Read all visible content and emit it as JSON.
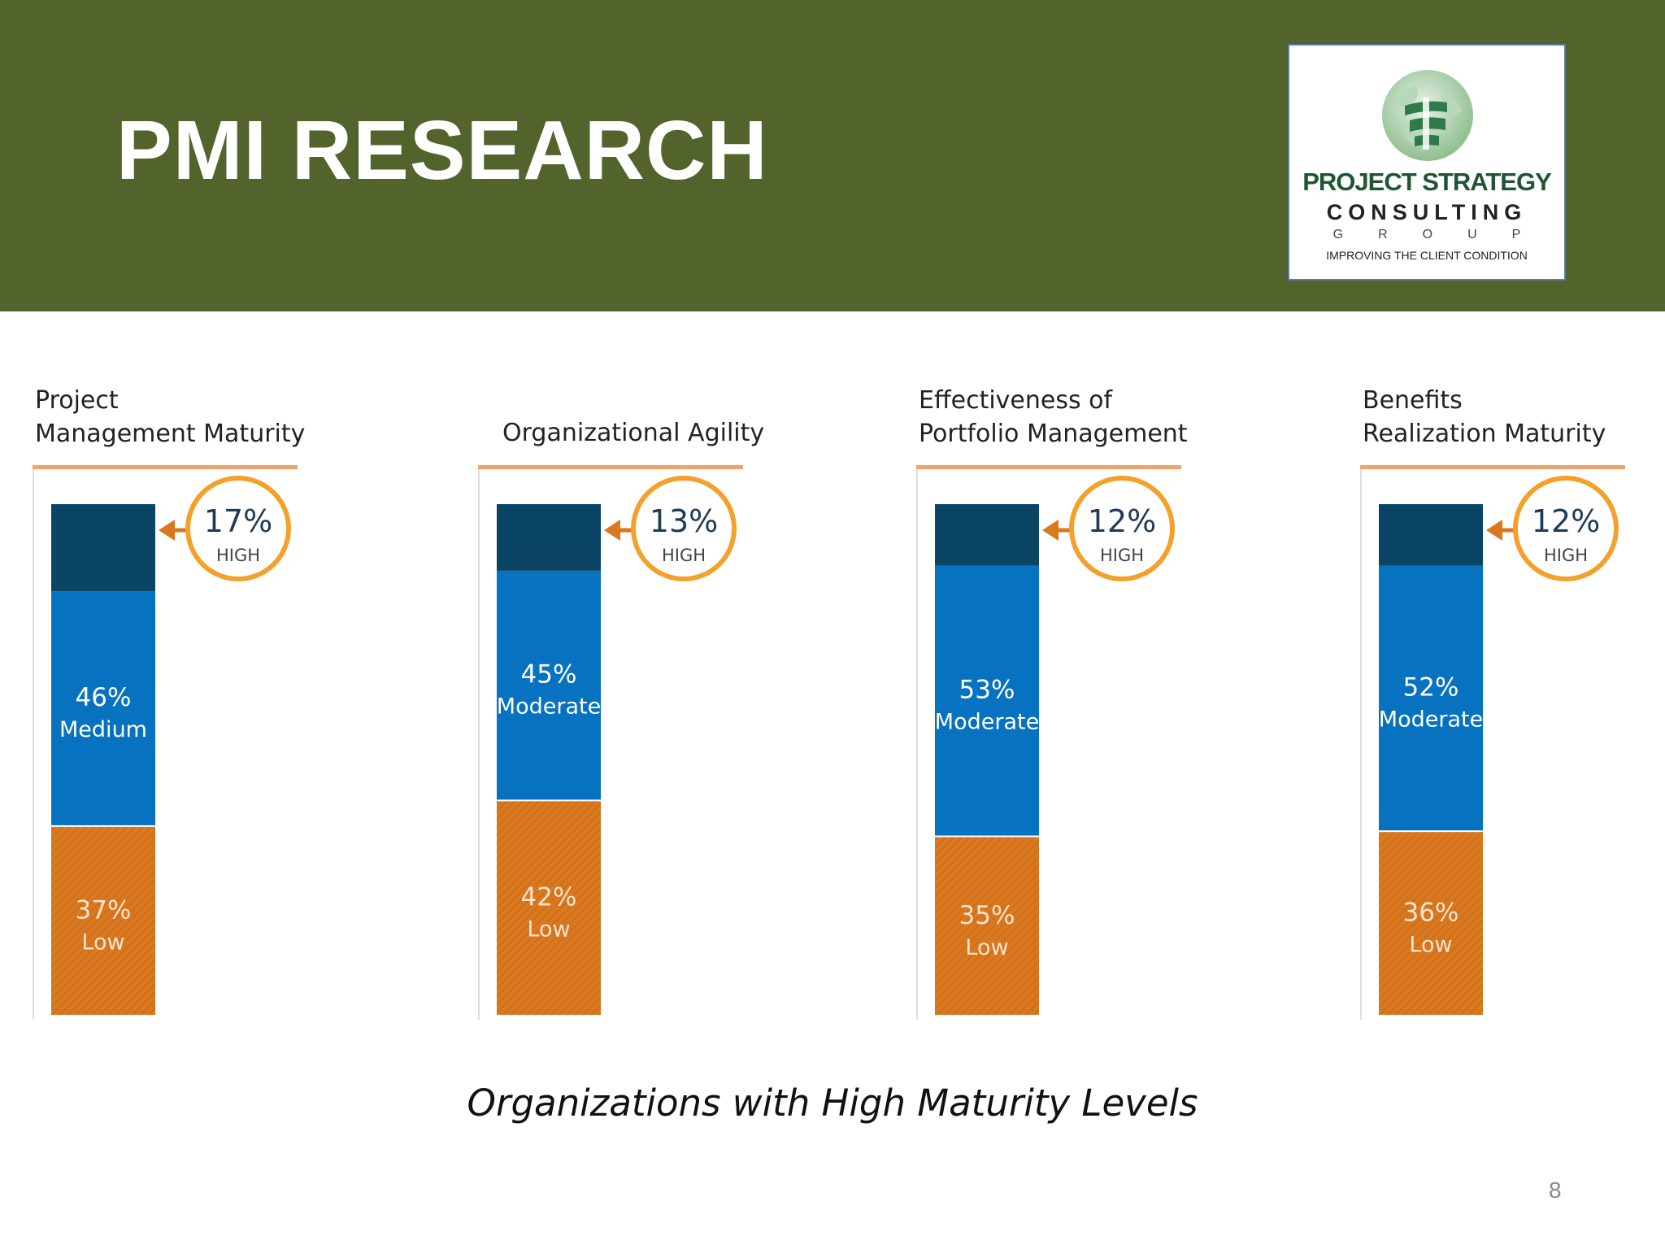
{
  "slide": {
    "title": "PMI RESEARCH",
    "caption": "Organizations with High Maturity Levels",
    "page_number": "8"
  },
  "logo": {
    "line1": "PROJECT STRATEGY",
    "line2": "CONSULTING",
    "line3": "GROUP",
    "tagline": "IMPROVING THE CLIENT CONDITION"
  },
  "colors": {
    "header": "#52632b",
    "high": "#0b4566",
    "mid": "#0672c0",
    "low": "#d9781f",
    "accent": "#f4a12c",
    "rule": "#f0a46a"
  },
  "chart_data": [
    {
      "type": "bar",
      "title": [
        "Project",
        "Management Maturity"
      ],
      "stacked": true,
      "series": [
        {
          "name": "Low",
          "label_pct": "37%",
          "label": "Low",
          "value": 37
        },
        {
          "name": "Medium",
          "label_pct": "46%",
          "label": "Medium",
          "value": 46
        },
        {
          "name": "HIGH",
          "label_pct": "17%",
          "label": "HIGH",
          "value": 17
        }
      ]
    },
    {
      "type": "bar",
      "title": [
        "Organizational Agility"
      ],
      "stacked": true,
      "series": [
        {
          "name": "Low",
          "label_pct": "42%",
          "label": "Low",
          "value": 42
        },
        {
          "name": "Moderate",
          "label_pct": "45%",
          "label": "Moderate",
          "value": 45
        },
        {
          "name": "HIGH",
          "label_pct": "13%",
          "label": "HIGH",
          "value": 13
        }
      ]
    },
    {
      "type": "bar",
      "title": [
        "Effectiveness of",
        "Portfolio Management"
      ],
      "stacked": true,
      "series": [
        {
          "name": "Low",
          "label_pct": "35%",
          "label": "Low",
          "value": 35
        },
        {
          "name": "Moderate",
          "label_pct": "53%",
          "label": "Moderate",
          "value": 53
        },
        {
          "name": "HIGH",
          "label_pct": "12%",
          "label": "HIGH",
          "value": 12
        }
      ]
    },
    {
      "type": "bar",
      "title": [
        "Benefits",
        "Realization Maturity"
      ],
      "stacked": true,
      "series": [
        {
          "name": "Low",
          "label_pct": "36%",
          "label": "Low",
          "value": 36
        },
        {
          "name": "Moderate",
          "label_pct": "52%",
          "label": "Moderate",
          "value": 52
        },
        {
          "name": "HIGH",
          "label_pct": "12%",
          "label": "HIGH",
          "value": 12
        }
      ]
    }
  ]
}
